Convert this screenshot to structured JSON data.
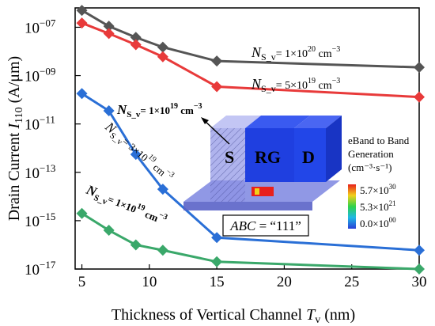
{
  "chart_data": {
    "type": "line",
    "y_scale": "log",
    "x": [
      5,
      7,
      9,
      11,
      15,
      30
    ],
    "xlim": [
      4.5,
      30
    ],
    "ylim_exponent": [
      -17,
      -6.2
    ],
    "xticks": [
      "5",
      "10",
      "15",
      "20",
      "25",
      "30"
    ],
    "yticks": [
      {
        "base": "10",
        "exp": "−07",
        "value": -7
      },
      {
        "base": "10",
        "exp": "−09",
        "value": -9
      },
      {
        "base": "10",
        "exp": "−11",
        "value": -11
      },
      {
        "base": "10",
        "exp": "−13",
        "value": -13
      },
      {
        "base": "10",
        "exp": "−15",
        "value": -15
      },
      {
        "base": "10",
        "exp": "−17",
        "value": -17
      }
    ],
    "xlabel": {
      "text": "Thickness of Vertical Channel ",
      "var": "T",
      "sub": "v",
      "unit": " (nm)"
    },
    "ylabel": {
      "text": "Drain Current ",
      "var": "I",
      "sub": "110",
      "unit": " (A/μm)"
    },
    "series": [
      {
        "color": "#555555",
        "values": [
          5e-07,
          1.1e-07,
          3.8e-08,
          1.5e-08,
          4e-09,
          2.2e-09
        ]
      },
      {
        "color": "#e83a3a",
        "values": [
          1.5e-07,
          5.5e-08,
          1.9e-08,
          6e-09,
          3.5e-10,
          1.3e-10
        ]
      },
      {
        "color": "#2a6fd6",
        "values": [
          1.8e-10,
          3.5e-11,
          5.5e-13,
          2e-14,
          2e-16,
          6e-17
        ]
      },
      {
        "color": "#3aa86a",
        "values": [
          2e-15,
          4e-16,
          1e-16,
          6e-17,
          2e-17,
          1e-17
        ]
      }
    ],
    "annotations": [
      {
        "n": "N",
        "sub": "S_v",
        "text": "= 1×10",
        "exp": "20",
        "unit": " cm",
        "unit_exp": "−3"
      },
      {
        "n": "N",
        "sub": "S_v",
        "text": "= 5×10",
        "exp": "19",
        "unit": " cm",
        "unit_exp": "−3"
      },
      {
        "n": "N",
        "sub": "S_v",
        "text": "= 1×10",
        "exp": "19",
        "unit": " cm",
        "unit_exp": "−3"
      },
      {
        "n": "N",
        "sub": "S_v",
        "text": "= 3×10",
        "exp": "19",
        "unit": " cm",
        "unit_exp": "−3"
      },
      {
        "n": "N",
        "sub": "S_v",
        "text": "= 1×10",
        "exp": "19",
        "unit": " cm",
        "unit_exp": "−3"
      }
    ]
  },
  "inset": {
    "regions": [
      "S",
      "RG",
      "D"
    ],
    "abc_label": {
      "var": "ABC",
      "text": " = “111”"
    },
    "colorbar_title": [
      "eBand to Band",
      "Generation",
      "(cm⁻³·s⁻¹)"
    ],
    "colorbar_ticks": [
      {
        "base": "5.7×10",
        "exp": "30"
      },
      {
        "base": "5.3×10",
        "exp": "21"
      },
      {
        "base": "0.0×10",
        "exp": "00"
      }
    ]
  }
}
